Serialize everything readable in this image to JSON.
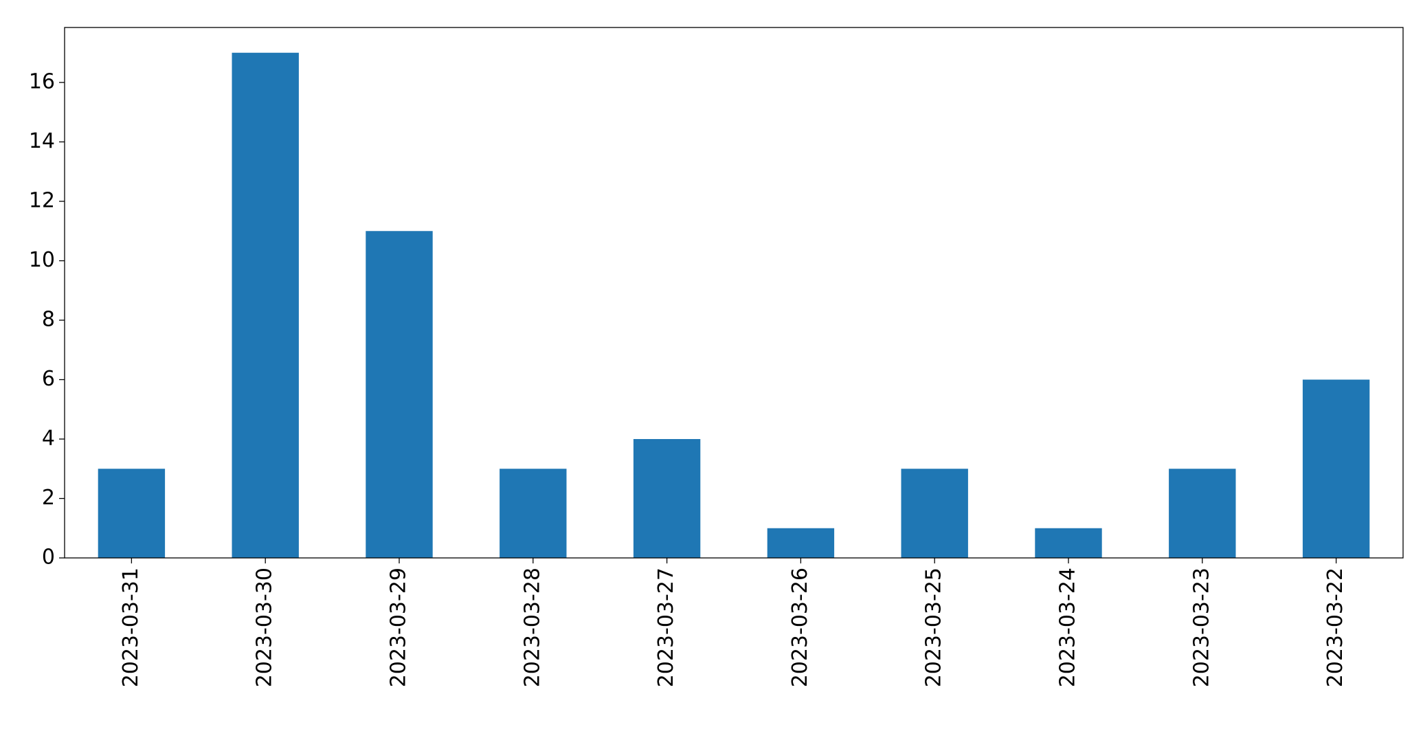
{
  "chart_data": {
    "type": "bar",
    "categories": [
      "2023-03-31",
      "2023-03-30",
      "2023-03-29",
      "2023-03-28",
      "2023-03-27",
      "2023-03-26",
      "2023-03-25",
      "2023-03-24",
      "2023-03-23",
      "2023-03-22"
    ],
    "values": [
      3,
      17,
      11,
      3,
      4,
      1,
      3,
      1,
      3,
      6
    ],
    "color": "#1f77b4",
    "ylim": [
      0,
      17.85
    ],
    "yticks": [
      0,
      2,
      4,
      6,
      8,
      10,
      12,
      14,
      16
    ],
    "grid": false
  }
}
